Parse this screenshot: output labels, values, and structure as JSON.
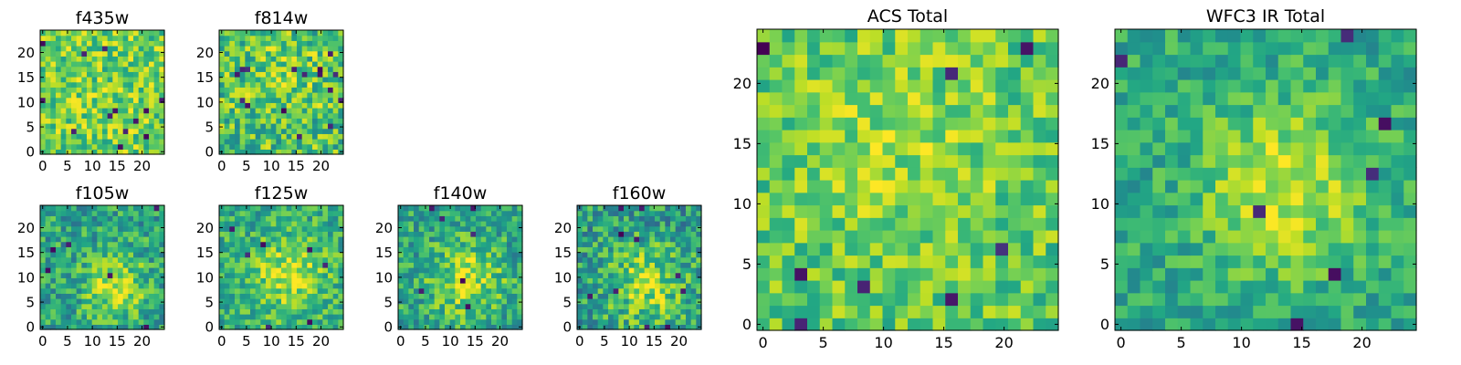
{
  "figure": {
    "colormap": "viridis",
    "colors": {
      "low": "#440154",
      "mid": "#21918c",
      "high": "#fde725",
      "axes": "#000000",
      "background": "#ffffff"
    }
  },
  "chart_data": [
    {
      "type": "heatmap",
      "title": "f435w",
      "grid_size": 24,
      "xticks": [
        0,
        5,
        10,
        15,
        20
      ],
      "yticks": [
        0,
        5,
        10,
        15,
        20
      ],
      "xlim": [
        0,
        24
      ],
      "ylim": [
        0,
        24
      ],
      "grid": false,
      "texture": {
        "seed": 11,
        "mean": 0.78,
        "noise": 0.22,
        "blob": 0.0,
        "cx": 12,
        "cy": 12,
        "sigma": 5,
        "dropout": 0.03
      }
    },
    {
      "type": "heatmap",
      "title": "f814w",
      "grid_size": 24,
      "xticks": [
        0,
        5,
        10,
        15,
        20
      ],
      "yticks": [
        0,
        5,
        10,
        15,
        20
      ],
      "xlim": [
        0,
        24
      ],
      "ylim": [
        0,
        24
      ],
      "grid": false,
      "texture": {
        "seed": 23,
        "mean": 0.7,
        "noise": 0.25,
        "blob": 0.1,
        "cx": 12,
        "cy": 14,
        "sigma": 6,
        "dropout": 0.02
      }
    },
    {
      "type": "heatmap",
      "title": "f105w",
      "grid_size": 24,
      "xticks": [
        0,
        5,
        10,
        15,
        20
      ],
      "yticks": [
        0,
        5,
        10,
        15,
        20
      ],
      "xlim": [
        0,
        24
      ],
      "ylim": [
        0,
        24
      ],
      "grid": false,
      "texture": {
        "seed": 37,
        "mean": 0.58,
        "noise": 0.22,
        "blob": 0.35,
        "cx": 14,
        "cy": 8,
        "sigma": 4,
        "dropout": 0.015
      }
    },
    {
      "type": "heatmap",
      "title": "f125w",
      "grid_size": 24,
      "xticks": [
        0,
        5,
        10,
        15,
        20
      ],
      "yticks": [
        0,
        5,
        10,
        15,
        20
      ],
      "xlim": [
        0,
        24
      ],
      "ylim": [
        0,
        24
      ],
      "grid": false,
      "texture": {
        "seed": 41,
        "mean": 0.62,
        "noise": 0.2,
        "blob": 0.28,
        "cx": 13,
        "cy": 10,
        "sigma": 5,
        "dropout": 0.015
      }
    },
    {
      "type": "heatmap",
      "title": "f140w",
      "grid_size": 24,
      "xticks": [
        0,
        5,
        10,
        15,
        20
      ],
      "yticks": [
        0,
        5,
        10,
        15,
        20
      ],
      "xlim": [
        0,
        24
      ],
      "ylim": [
        0,
        24
      ],
      "grid": false,
      "texture": {
        "seed": 53,
        "mean": 0.58,
        "noise": 0.22,
        "blob": 0.3,
        "cx": 13,
        "cy": 9,
        "sigma": 5,
        "dropout": 0.015
      }
    },
    {
      "type": "heatmap",
      "title": "f160w",
      "grid_size": 24,
      "xticks": [
        0,
        5,
        10,
        15,
        20
      ],
      "yticks": [
        0,
        5,
        10,
        15,
        20
      ],
      "xlim": [
        0,
        24
      ],
      "ylim": [
        0,
        24
      ],
      "grid": false,
      "texture": {
        "seed": 67,
        "mean": 0.56,
        "noise": 0.24,
        "blob": 0.32,
        "cx": 13,
        "cy": 8,
        "sigma": 5,
        "dropout": 0.015
      }
    },
    {
      "type": "heatmap",
      "title": "ACS Total",
      "grid_size": 24,
      "xticks": [
        0,
        5,
        10,
        15,
        20
      ],
      "yticks": [
        0,
        5,
        10,
        15,
        20
      ],
      "xlim": [
        0,
        24
      ],
      "ylim": [
        0,
        24
      ],
      "grid": false,
      "texture": {
        "seed": 79,
        "mean": 0.74,
        "noise": 0.18,
        "blob": 0.1,
        "cx": 11,
        "cy": 14,
        "sigma": 6,
        "dropout": 0.02
      }
    },
    {
      "type": "heatmap",
      "title": "WFC3 IR Total",
      "grid_size": 24,
      "xticks": [
        0,
        5,
        10,
        15,
        20
      ],
      "yticks": [
        0,
        5,
        10,
        15,
        20
      ],
      "xlim": [
        0,
        24
      ],
      "ylim": [
        0,
        24
      ],
      "grid": false,
      "texture": {
        "seed": 97,
        "mean": 0.6,
        "noise": 0.16,
        "blob": 0.34,
        "cx": 13,
        "cy": 11,
        "sigma": 4.5,
        "dropout": 0.015
      }
    }
  ]
}
